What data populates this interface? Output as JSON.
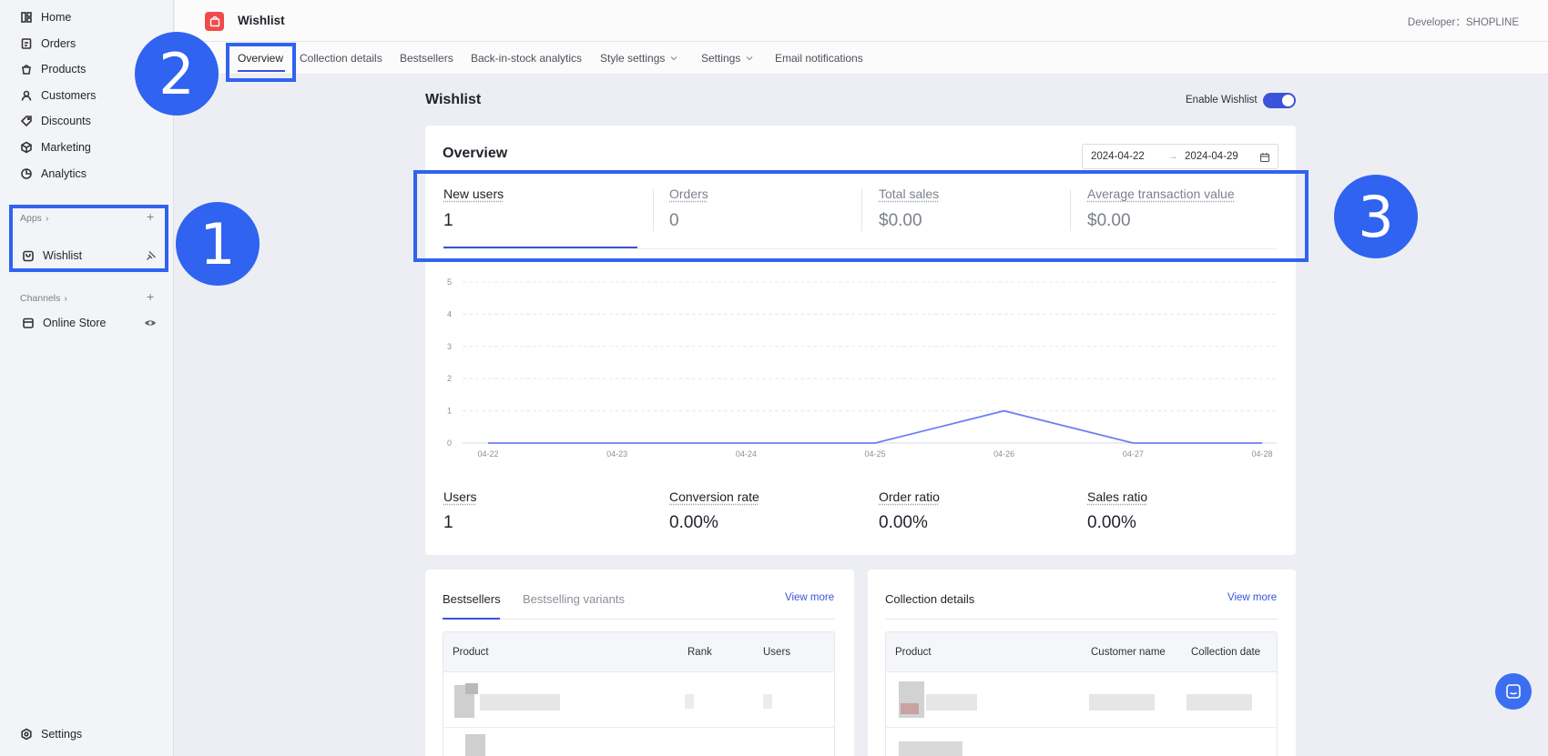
{
  "sidebar": {
    "nav": [
      {
        "label": "Home",
        "icon": "home-icon"
      },
      {
        "label": "Orders",
        "icon": "orders-icon"
      },
      {
        "label": "Products",
        "icon": "products-icon"
      },
      {
        "label": "Customers",
        "icon": "customers-icon"
      },
      {
        "label": "Discounts",
        "icon": "discounts-icon"
      },
      {
        "label": "Marketing",
        "icon": "marketing-icon"
      },
      {
        "label": "Analytics",
        "icon": "analytics-icon"
      }
    ],
    "apps_label": "Apps",
    "apps_item": "Wishlist",
    "channels_label": "Channels",
    "channels_item": "Online Store",
    "settings_label": "Settings"
  },
  "header": {
    "app_title": "Wishlist",
    "developer": "Developer：SHOPLINE"
  },
  "tabs": [
    "Overview",
    "Collection details",
    "Bestsellers",
    "Back-in-stock analytics",
    "Style settings",
    "Settings",
    "Email notifications"
  ],
  "page": {
    "title": "Wishlist",
    "enable_label": "Enable Wishlist",
    "enabled": true
  },
  "overview": {
    "title": "Overview",
    "date_start": "2024-04-22",
    "date_sep": "→",
    "date_end": "2024-04-29",
    "metrics": [
      {
        "label": "New users",
        "value": "1"
      },
      {
        "label": "Orders",
        "value": "0"
      },
      {
        "label": "Total sales",
        "value": "$0.00"
      },
      {
        "label": "Average transaction value",
        "value": "$0.00"
      }
    ],
    "stats": [
      {
        "label": "Users",
        "value": "1"
      },
      {
        "label": "Conversion rate",
        "value": "0.00%"
      },
      {
        "label": "Order ratio",
        "value": "0.00%"
      },
      {
        "label": "Sales ratio",
        "value": "0.00%"
      }
    ]
  },
  "chart_data": {
    "type": "line",
    "x": [
      "04-22",
      "04-23",
      "04-24",
      "04-25",
      "04-26",
      "04-27",
      "04-28"
    ],
    "series": [
      {
        "values": [
          0,
          0,
          0,
          0,
          1,
          0,
          0
        ]
      }
    ],
    "yticks": [
      "0",
      "1",
      "2",
      "3",
      "4",
      "5"
    ],
    "ylim": [
      0,
      5
    ],
    "grid": true,
    "color": "#6e7ff0"
  },
  "bestsellers": {
    "tab_active": "Bestsellers",
    "tab_other": "Bestselling variants",
    "view_more": "View more",
    "columns": [
      "Product",
      "Rank",
      "Users"
    ]
  },
  "collection": {
    "title": "Collection details",
    "view_more": "View more",
    "columns": [
      "Product",
      "Customer name",
      "Collection date"
    ]
  },
  "markers": [
    "1",
    "2",
    "3"
  ]
}
